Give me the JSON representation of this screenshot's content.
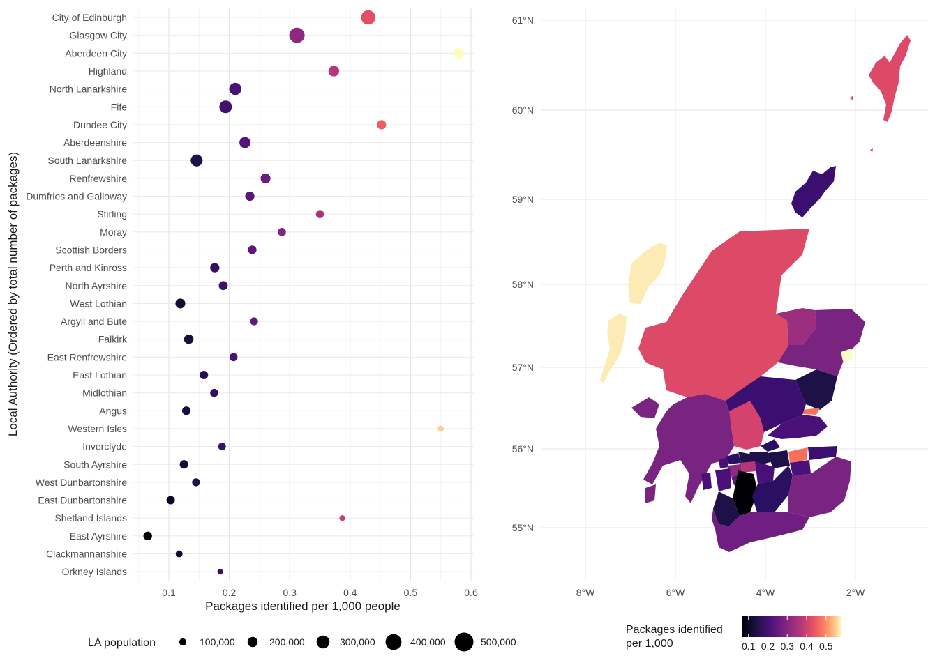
{
  "chart_data": [
    {
      "type": "scatter",
      "title": "",
      "xlabel": "Packages identified per 1,000 people",
      "ylabel": "Local Authority (Ordered by total number of packages)",
      "xlim": [
        0.05,
        0.62
      ],
      "xticks": [
        "0.1",
        "0.2",
        "0.3",
        "0.4",
        "0.5",
        "0.6"
      ],
      "xtick_values": [
        0.1,
        0.2,
        0.3,
        0.4,
        0.5,
        0.6
      ],
      "grid": true,
      "color_encoding": "Packages identified per 1,000 (magma scale)",
      "size_encoding": "LA population",
      "points": [
        {
          "la": "City of Edinburgh",
          "rate": 0.43,
          "pop": 525000
        },
        {
          "la": "Glasgow City",
          "rate": 0.312,
          "pop": 633000
        },
        {
          "la": "Aberdeen City",
          "rate": 0.58,
          "pop": 229000
        },
        {
          "la": "Highland",
          "rate": 0.373,
          "pop": 236000
        },
        {
          "la": "North Lanarkshire",
          "rate": 0.21,
          "pop": 341000
        },
        {
          "la": "Fife",
          "rate": 0.194,
          "pop": 374000
        },
        {
          "la": "Dundee City",
          "rate": 0.452,
          "pop": 149000
        },
        {
          "la": "Aberdeenshire",
          "rate": 0.226,
          "pop": 261000
        },
        {
          "la": "South Lanarkshire",
          "rate": 0.146,
          "pop": 320000
        },
        {
          "la": "Renfrewshire",
          "rate": 0.26,
          "pop": 179000
        },
        {
          "la": "Dumfries and Galloway",
          "rate": 0.234,
          "pop": 148000
        },
        {
          "la": "Stirling",
          "rate": 0.35,
          "pop": 94000
        },
        {
          "la": "Moray",
          "rate": 0.287,
          "pop": 96000
        },
        {
          "la": "Scottish Borders",
          "rate": 0.238,
          "pop": 116000
        },
        {
          "la": "Perth and Kinross",
          "rate": 0.176,
          "pop": 151000
        },
        {
          "la": "North Ayrshire",
          "rate": 0.19,
          "pop": 135000
        },
        {
          "la": "West Lothian",
          "rate": 0.119,
          "pop": 183000
        },
        {
          "la": "Argyll and Bute",
          "rate": 0.241,
          "pop": 86000
        },
        {
          "la": "Falkirk",
          "rate": 0.133,
          "pop": 160000
        },
        {
          "la": "East Renfrewshire",
          "rate": 0.207,
          "pop": 95000
        },
        {
          "la": "East Lothian",
          "rate": 0.158,
          "pop": 107000
        },
        {
          "la": "Midlothian",
          "rate": 0.175,
          "pop": 93000
        },
        {
          "la": "Angus",
          "rate": 0.129,
          "pop": 116000
        },
        {
          "la": "Western Isles",
          "rate": 0.55,
          "pop": 27000
        },
        {
          "la": "Inverclyde",
          "rate": 0.188,
          "pop": 78000
        },
        {
          "la": "South Ayrshire",
          "rate": 0.125,
          "pop": 112000
        },
        {
          "la": "West Dunbartonshire",
          "rate": 0.145,
          "pop": 88000
        },
        {
          "la": "East Dunbartonshire",
          "rate": 0.103,
          "pop": 108000
        },
        {
          "la": "Shetland Islands",
          "rate": 0.387,
          "pop": 23000
        },
        {
          "la": "East Ayrshire",
          "rate": 0.065,
          "pop": 122000
        },
        {
          "la": "Clackmannanshire",
          "rate": 0.117,
          "pop": 52000
        },
        {
          "la": "Orkney Islands",
          "rate": 0.185,
          "pop": 22000
        }
      ]
    },
    {
      "type": "choropleth map",
      "title": "",
      "lon_ticks": [
        "8°W",
        "6°W",
        "4°W",
        "2°W"
      ],
      "lat_ticks": [
        "61°N",
        "60°N",
        "59°N",
        "58°N",
        "57°N",
        "56°N",
        "55°N"
      ],
      "fill": "Packages identified per 1,000 per Local Authority (same values as scatter)"
    }
  ],
  "size_legend": {
    "title": "LA population",
    "items": [
      {
        "label": "100,000",
        "value": 100000
      },
      {
        "label": "200,000",
        "value": 200000
      },
      {
        "label": "300,000",
        "value": 300000
      },
      {
        "label": "400,000",
        "value": 400000
      },
      {
        "label": "500,000",
        "value": 500000
      }
    ]
  },
  "color_legend": {
    "title_line1": "Packages identified",
    "title_line2": "per 1,000",
    "ticks": [
      "0.1",
      "0.2",
      "0.3",
      "0.4",
      "0.5"
    ],
    "tick_values": [
      0.1,
      0.2,
      0.3,
      0.4,
      0.5
    ],
    "range": [
      0.065,
      0.58
    ]
  }
}
